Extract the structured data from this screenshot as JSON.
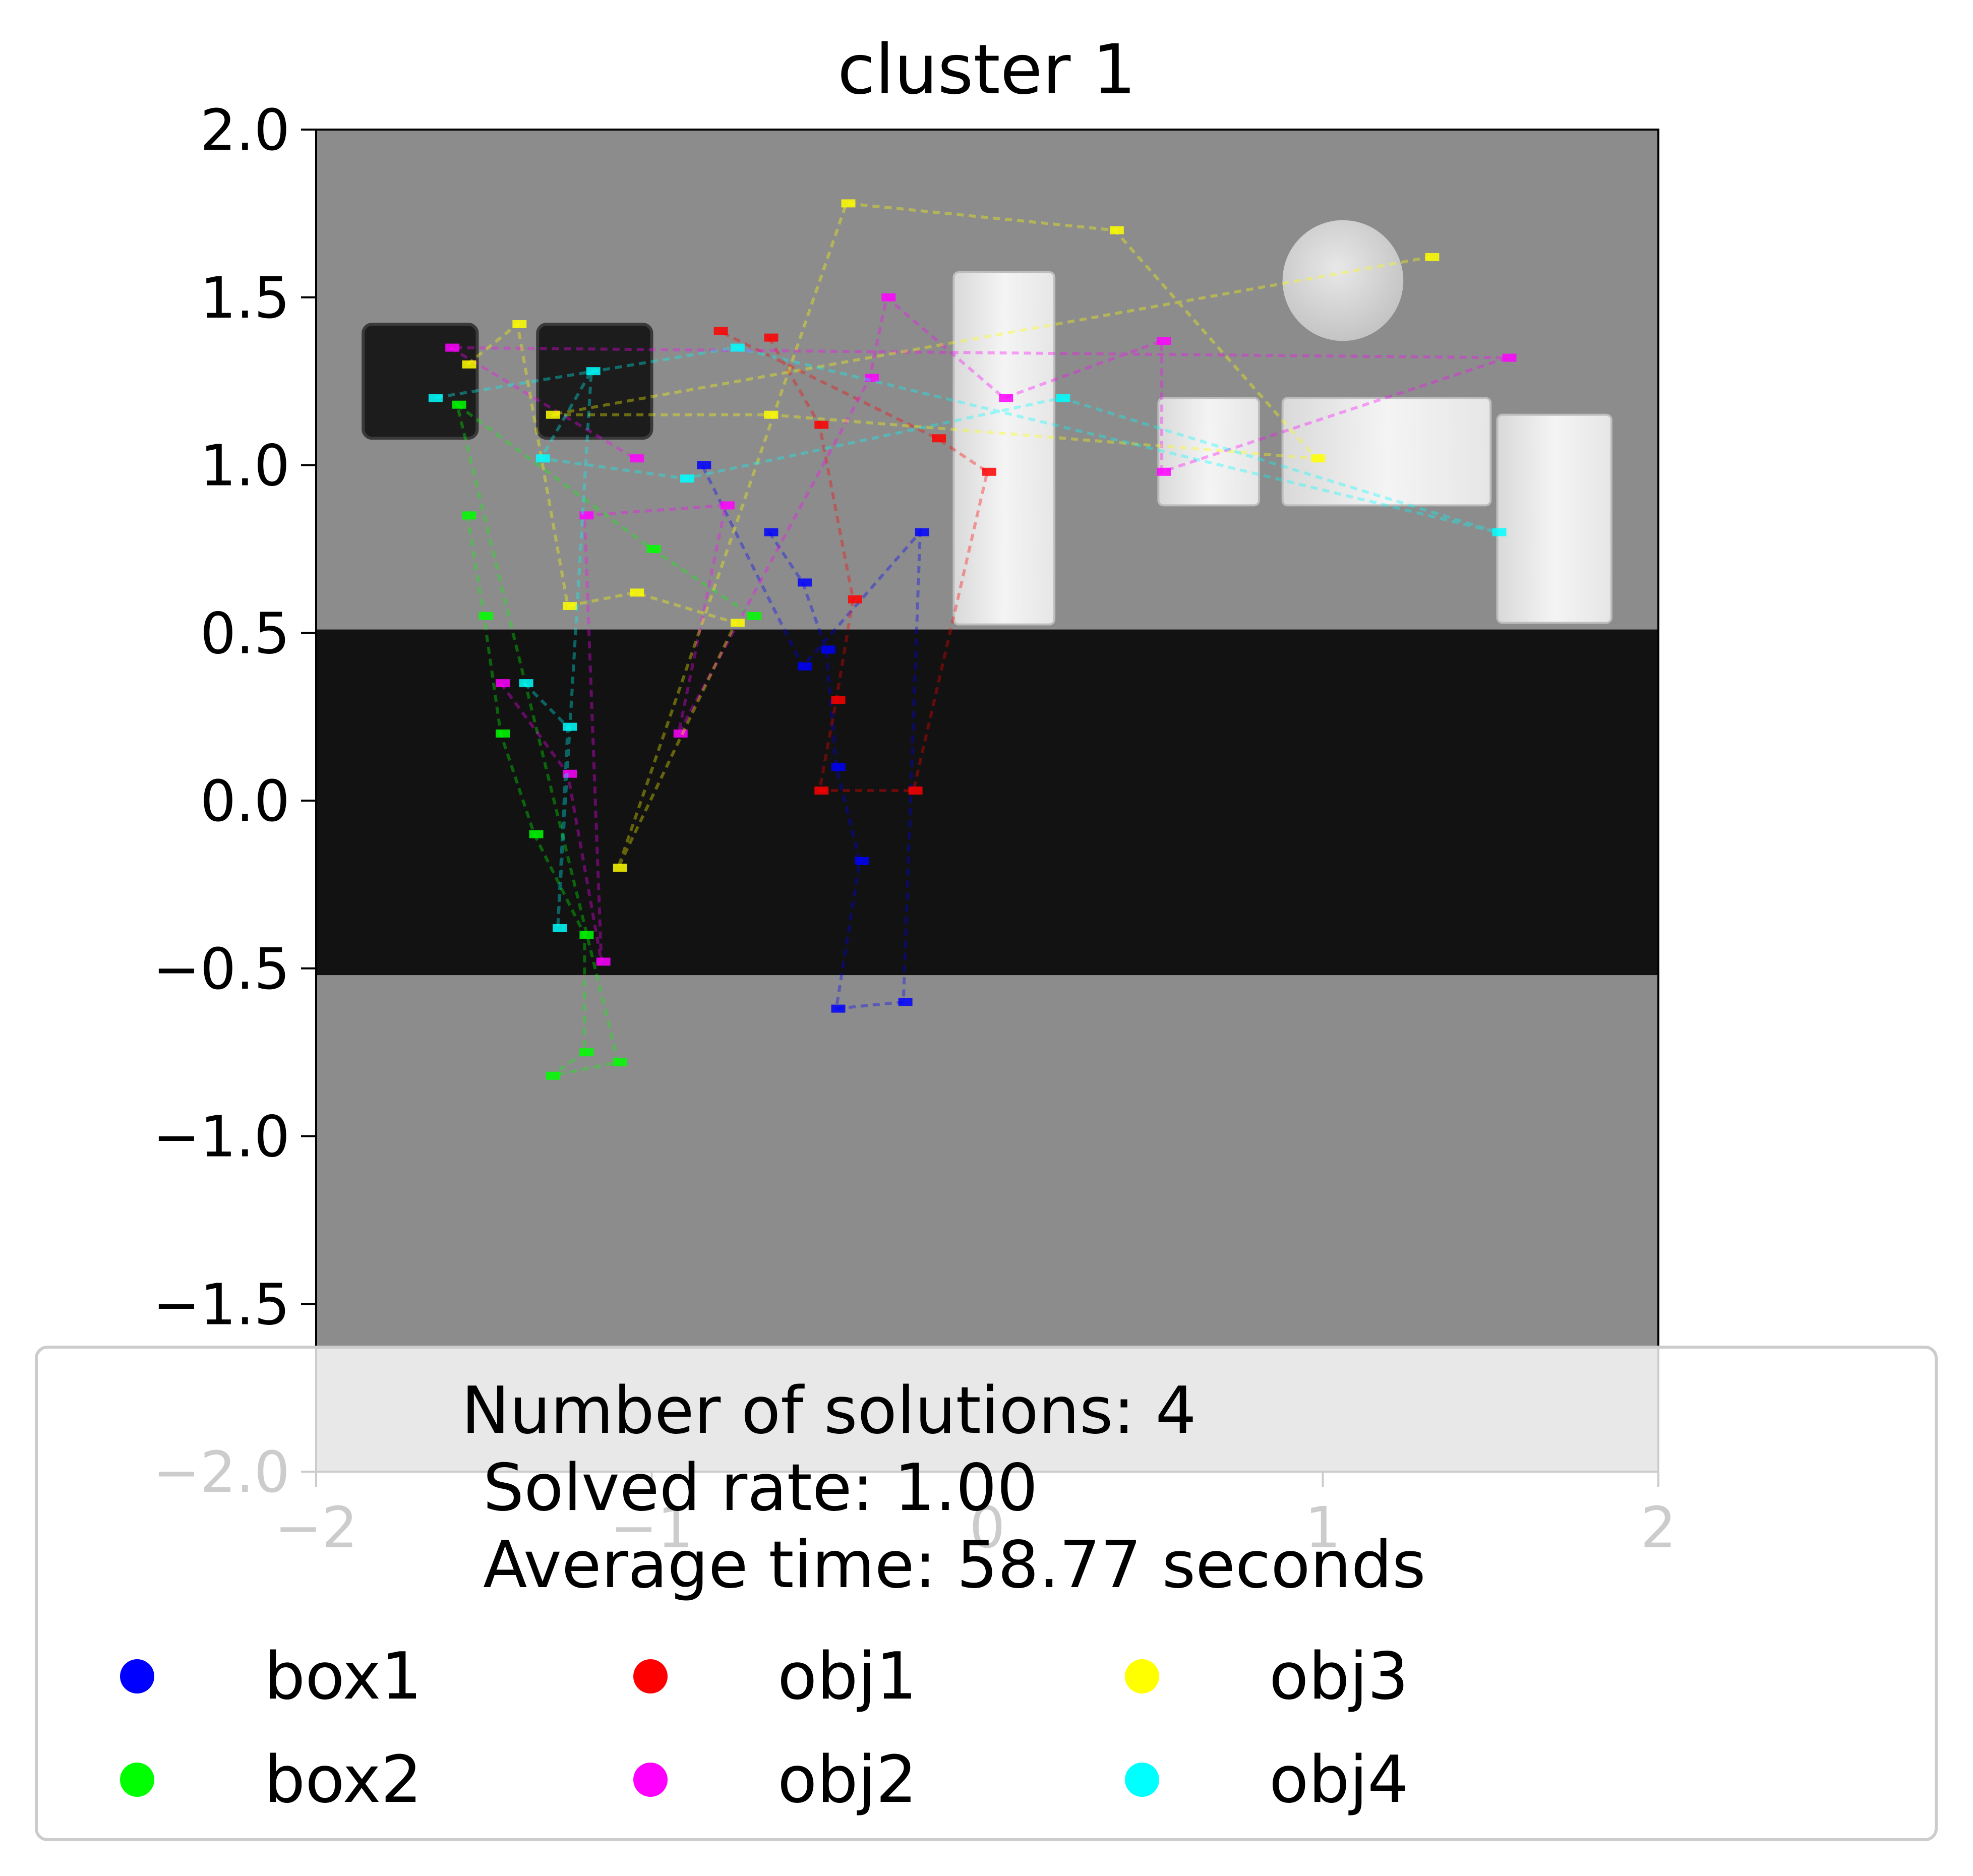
{
  "chart_data": {
    "type": "scatter",
    "title": "cluster 1",
    "xlabel": "",
    "ylabel": "",
    "xlim": [
      -2,
      2
    ],
    "ylim": [
      -2,
      2
    ],
    "x_ticks": [
      -2,
      -1,
      0,
      1,
      2
    ],
    "x_tick_labels": [
      "−2",
      "−1",
      "0",
      "1",
      "2"
    ],
    "y_ticks": [
      2.0,
      1.5,
      1.0,
      0.5,
      0.0,
      -0.5,
      -1.0,
      -1.5,
      -2.0
    ],
    "y_tick_labels": [
      "2.0",
      "1.5",
      "1.0",
      "0.5",
      "0.0",
      "−0.5",
      "−1.0",
      "−1.5",
      "−2.0"
    ],
    "grid": false,
    "background": {
      "floor_color": "#8c8c8c",
      "table_color": "#121212",
      "table_y_range": [
        -0.52,
        0.51
      ]
    },
    "scene_objects": [
      {
        "kind": "dark-box",
        "x": -1.69,
        "y": 1.25
      },
      {
        "kind": "dark-box",
        "x": -1.17,
        "y": 1.25
      },
      {
        "kind": "white-box",
        "x": 0.05,
        "y": 1.05
      },
      {
        "kind": "white-box",
        "x": 0.66,
        "y": 1.04
      },
      {
        "kind": "white-box",
        "x": 1.19,
        "y": 1.04
      },
      {
        "kind": "white-box",
        "x": 1.69,
        "y": 0.84
      },
      {
        "kind": "white-disc",
        "x": 1.06,
        "y": 1.55
      }
    ],
    "legend": {
      "placement": "lower-center",
      "text_lines": [
        "Number of solutions: 4",
        "Solved rate: 1.00",
        "Average time: 58.77 seconds"
      ],
      "entries": [
        {
          "label": "box1",
          "color": "#0000ff"
        },
        {
          "label": "box2",
          "color": "#00ff00"
        },
        {
          "label": "obj1",
          "color": "#ff0000"
        },
        {
          "label": "obj2",
          "color": "#ff00ff"
        },
        {
          "label": "obj3",
          "color": "#ffff00"
        },
        {
          "label": "obj4",
          "color": "#00ffff"
        }
      ]
    },
    "series": [
      {
        "name": "box1",
        "color": "#0000ff",
        "points": [
          [
            -0.65,
            0.8
          ],
          [
            -0.55,
            0.65
          ],
          [
            -0.48,
            0.45
          ],
          [
            -0.45,
            0.1
          ],
          [
            -0.38,
            -0.18
          ],
          [
            -0.45,
            -0.62
          ],
          [
            -0.25,
            -0.6
          ],
          [
            -0.2,
            0.8
          ],
          [
            -0.55,
            0.4
          ],
          [
            -0.85,
            1.0
          ]
        ]
      },
      {
        "name": "box2",
        "color": "#00ff00",
        "points": [
          [
            -1.55,
            0.85
          ],
          [
            -1.5,
            0.55
          ],
          [
            -1.45,
            0.2
          ],
          [
            -1.35,
            -0.1
          ],
          [
            -1.2,
            -0.4
          ],
          [
            -1.2,
            -0.75
          ],
          [
            -1.3,
            -0.82
          ],
          [
            -1.1,
            -0.78
          ],
          [
            -1.58,
            1.18
          ],
          [
            -1.0,
            0.75
          ],
          [
            -0.7,
            0.55
          ]
        ]
      },
      {
        "name": "obj1",
        "color": "#ff0000",
        "points": [
          [
            -0.65,
            1.38
          ],
          [
            -0.5,
            1.12
          ],
          [
            -0.4,
            0.6
          ],
          [
            -0.45,
            0.3
          ],
          [
            -0.5,
            0.03
          ],
          [
            -0.22,
            0.03
          ],
          [
            0.0,
            0.98
          ],
          [
            -0.15,
            1.08
          ],
          [
            -0.8,
            1.4
          ]
        ]
      },
      {
        "name": "obj2",
        "color": "#ff00ff",
        "points": [
          [
            -1.45,
            0.35
          ],
          [
            -1.25,
            0.08
          ],
          [
            -1.15,
            -0.48
          ],
          [
            -1.2,
            0.85
          ],
          [
            -0.78,
            0.88
          ],
          [
            -0.92,
            0.2
          ],
          [
            -0.35,
            1.26
          ],
          [
            -0.3,
            1.5
          ],
          [
            0.05,
            1.2
          ],
          [
            0.52,
            1.37
          ],
          [
            0.52,
            0.98
          ],
          [
            1.55,
            1.32
          ],
          [
            -1.6,
            1.35
          ],
          [
            -1.05,
            1.02
          ]
        ]
      },
      {
        "name": "obj3",
        "color": "#ffff00",
        "points": [
          [
            -1.55,
            1.3
          ],
          [
            -1.4,
            1.42
          ],
          [
            -1.25,
            0.58
          ],
          [
            -1.05,
            0.62
          ],
          [
            -0.75,
            0.53
          ],
          [
            -1.1,
            -0.2
          ],
          [
            -0.42,
            1.78
          ],
          [
            0.38,
            1.7
          ],
          [
            0.98,
            1.02
          ],
          [
            -0.65,
            1.15
          ],
          [
            -1.3,
            1.15
          ],
          [
            1.32,
            1.62
          ]
        ]
      },
      {
        "name": "obj4",
        "color": "#00ffff",
        "points": [
          [
            -1.38,
            0.35
          ],
          [
            -1.25,
            0.22
          ],
          [
            -1.28,
            -0.38
          ],
          [
            -1.18,
            1.28
          ],
          [
            -1.33,
            1.02
          ],
          [
            -0.9,
            0.96
          ],
          [
            0.22,
            1.2
          ],
          [
            1.52,
            0.8
          ],
          [
            -0.75,
            1.35
          ],
          [
            -1.65,
            1.2
          ]
        ]
      }
    ]
  }
}
